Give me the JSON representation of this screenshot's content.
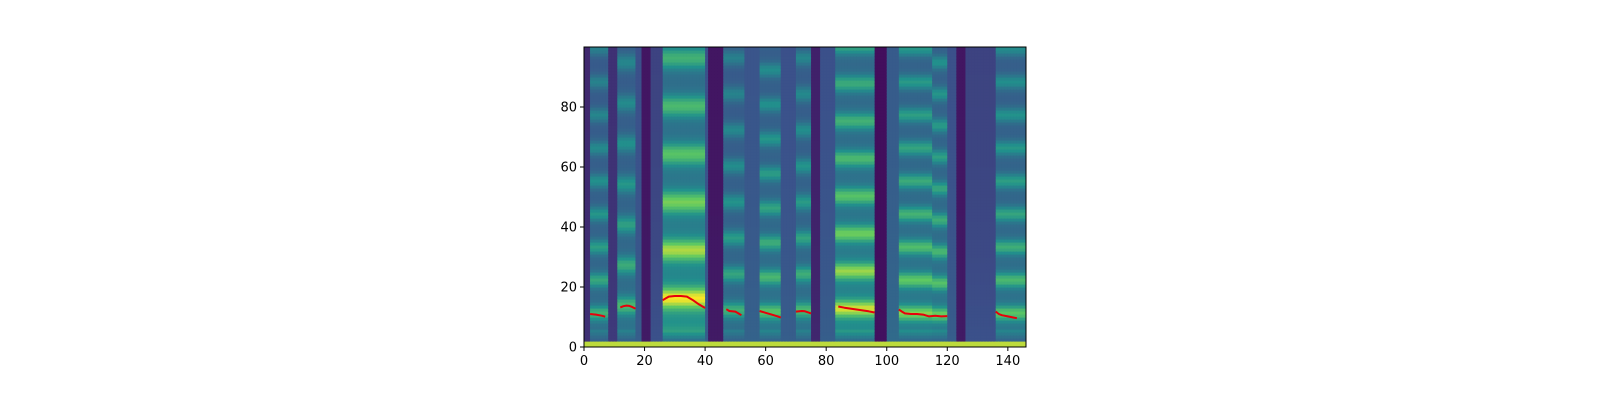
{
  "chart_data": {
    "type": "heatmap",
    "title": "",
    "xlabel": "",
    "ylabel": "",
    "xlim": [
      0,
      146
    ],
    "ylim": [
      0,
      100
    ],
    "xticks": [
      0,
      20,
      40,
      60,
      80,
      100,
      120,
      140
    ],
    "xtick_labels": [
      "0",
      "20",
      "40",
      "60",
      "80",
      "100",
      "120",
      "140"
    ],
    "yticks": [
      0,
      20,
      40,
      60,
      80
    ],
    "ytick_labels": [
      "0",
      "20",
      "40",
      "60",
      "80"
    ],
    "grid": false,
    "colormap": "viridis",
    "heatmap_bands": [
      {
        "x0": 0,
        "x1": 2,
        "level": 0.15,
        "f0": 0
      },
      {
        "x0": 2,
        "x1": 8,
        "level": 0.5,
        "f0": 11
      },
      {
        "x0": 8,
        "x1": 11,
        "level": 0.18,
        "f0": 0
      },
      {
        "x0": 11,
        "x1": 17,
        "level": 0.55,
        "f0": 13.5
      },
      {
        "x0": 17,
        "x1": 19,
        "level": 0.3,
        "f0": 0
      },
      {
        "x0": 19,
        "x1": 22,
        "level": 0.08,
        "f0": 0
      },
      {
        "x0": 22,
        "x1": 26,
        "level": 0.25,
        "f0": 0
      },
      {
        "x0": 26,
        "x1": 40,
        "level": 0.95,
        "f0": 16
      },
      {
        "x0": 40,
        "x1": 41,
        "level": 0.3,
        "f0": 0
      },
      {
        "x0": 41,
        "x1": 46,
        "level": 0.08,
        "f0": 0
      },
      {
        "x0": 46,
        "x1": 53,
        "level": 0.5,
        "f0": 12
      },
      {
        "x0": 53,
        "x1": 58,
        "level": 0.32,
        "f0": 0
      },
      {
        "x0": 58,
        "x1": 65,
        "level": 0.6,
        "f0": 11.5
      },
      {
        "x0": 65,
        "x1": 70,
        "level": 0.3,
        "f0": 0
      },
      {
        "x0": 70,
        "x1": 75,
        "level": 0.55,
        "f0": 12
      },
      {
        "x0": 75,
        "x1": 78,
        "level": 0.12,
        "f0": 0
      },
      {
        "x0": 78,
        "x1": 83,
        "level": 0.3,
        "f0": 0
      },
      {
        "x0": 83,
        "x1": 96,
        "level": 0.85,
        "f0": 12.5
      },
      {
        "x0": 96,
        "x1": 100,
        "level": 0.05,
        "f0": 0
      },
      {
        "x0": 100,
        "x1": 104,
        "level": 0.35,
        "f0": 0
      },
      {
        "x0": 104,
        "x1": 115,
        "level": 0.7,
        "f0": 11
      },
      {
        "x0": 115,
        "x1": 120,
        "level": 0.65,
        "f0": 10.5
      },
      {
        "x0": 120,
        "x1": 123,
        "level": 0.3,
        "f0": 0
      },
      {
        "x0": 123,
        "x1": 126,
        "level": 0.08,
        "f0": 0
      },
      {
        "x0": 126,
        "x1": 136,
        "level": 0.25,
        "f0": 0
      },
      {
        "x0": 136,
        "x1": 146,
        "level": 0.6,
        "f0": 11
      }
    ],
    "series": [
      {
        "segment": 1,
        "x": [
          2,
          4,
          6,
          7
        ],
        "y": [
          11,
          10.8,
          10.4,
          10.1
        ]
      },
      {
        "segment": 2,
        "x": [
          12,
          13,
          14,
          15,
          16,
          17
        ],
        "y": [
          13.2,
          13.6,
          13.8,
          13.7,
          13.3,
          12.8
        ]
      },
      {
        "segment": 3,
        "x": [
          26,
          27,
          28,
          30,
          32,
          34,
          36,
          38,
          40
        ],
        "y": [
          15.6,
          16.2,
          16.8,
          17,
          17,
          16.8,
          15.6,
          14.2,
          13
        ]
      },
      {
        "segment": 4,
        "x": [
          47,
          48,
          50,
          51,
          52
        ],
        "y": [
          12.6,
          12,
          11.8,
          11.2,
          10.6
        ]
      },
      {
        "segment": 5,
        "x": [
          58,
          60,
          62,
          64,
          65
        ],
        "y": [
          12,
          11.4,
          10.8,
          10.2,
          9.8
        ]
      },
      {
        "segment": 6,
        "x": [
          70,
          72,
          73,
          75
        ],
        "y": [
          11.8,
          12,
          11.9,
          11.2
        ]
      },
      {
        "segment": 7,
        "x": [
          84,
          86,
          88,
          90,
          92,
          94,
          96
        ],
        "y": [
          13.5,
          13.1,
          12.8,
          12.5,
          12.2,
          11.9,
          11.5
        ]
      },
      {
        "segment": 8,
        "x": [
          104,
          105,
          106,
          108,
          110,
          112,
          114,
          116,
          118,
          120
        ],
        "y": [
          12.5,
          11.8,
          11.2,
          11,
          11,
          10.8,
          10.2,
          10.4,
          10.2,
          10.3
        ]
      },
      {
        "segment": 9,
        "x": [
          136,
          137,
          138,
          140,
          142,
          143
        ],
        "y": [
          11.8,
          11,
          10.6,
          10.2,
          9.8,
          9.6
        ]
      }
    ],
    "line_color": "#e8000b"
  }
}
